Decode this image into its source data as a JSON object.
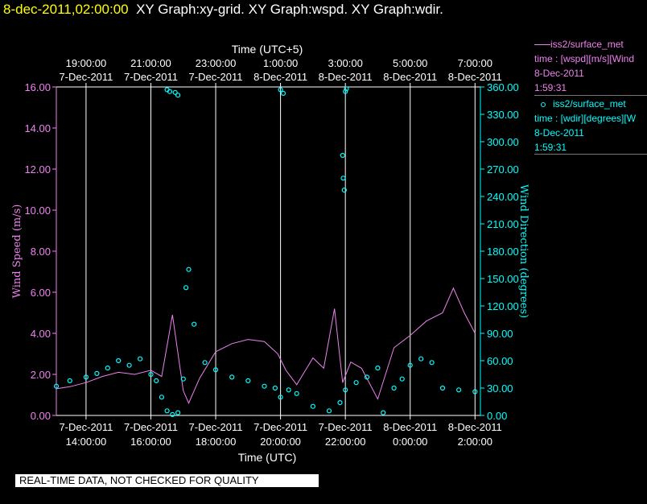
{
  "header": {
    "timestamp": "8-dec-2011,02:00:00",
    "graphs": "XY Graph:xy-grid.  XY Graph:wspd.  XY Graph:wdir."
  },
  "legend": {
    "wspd": {
      "title": "iss2/surface_met",
      "desc": "time : [wspd][m/s][Wind",
      "date": "8-Dec-2011",
      "time": "1:59:31",
      "color": "#ee82ee"
    },
    "wdir": {
      "title": "iss2/surface_met",
      "desc": "time : [wdir][degrees][W",
      "date": "8-Dec-2011",
      "time": "1:59:31",
      "color": "#00ffff"
    }
  },
  "quality_notice": "REAL-TIME DATA, NOT CHECKED FOR QUALITY",
  "chart_data": {
    "type": "scatter",
    "x_top_label": "Time (UTC+5)",
    "x_bottom_label": "Time (UTC)",
    "y_left_label": "Wind Speed (m/s)",
    "y_right_label": "Wind Direction (degrees)",
    "grid": "vertical lines at 2-hour ticks",
    "x_range_utc": [
      "7-Dec-2011 13:05",
      "8-Dec-2011 02:10"
    ],
    "y_left_range": [
      0,
      16
    ],
    "y_right_range": [
      0,
      360
    ],
    "top_ticks": [
      {
        "time": "7-Dec-2011 14:00",
        "label": "19:00:00",
        "date": "7-Dec-2011"
      },
      {
        "time": "7-Dec-2011 16:00",
        "label": "21:00:00",
        "date": "7-Dec-2011"
      },
      {
        "time": "7-Dec-2011 18:00",
        "label": "23:00:00",
        "date": "7-Dec-2011"
      },
      {
        "time": "7-Dec-2011 20:00",
        "label": "1:00:00",
        "date": "8-Dec-2011"
      },
      {
        "time": "7-Dec-2011 22:00",
        "label": "3:00:00",
        "date": "8-Dec-2011"
      },
      {
        "time": "8-Dec-2011 00:00",
        "label": "5:00:00",
        "date": "8-Dec-2011"
      },
      {
        "time": "8-Dec-2011 02:00",
        "label": "7:00:00",
        "date": "8-Dec-2011"
      }
    ],
    "bottom_ticks": [
      {
        "time": "7-Dec-2011 14:00",
        "label": "14:00:00",
        "date": "7-Dec-2011"
      },
      {
        "time": "7-Dec-2011 16:00",
        "label": "16:00:00",
        "date": "7-Dec-2011"
      },
      {
        "time": "7-Dec-2011 18:00",
        "label": "18:00:00",
        "date": "7-Dec-2011"
      },
      {
        "time": "7-Dec-2011 20:00",
        "label": "20:00:00",
        "date": "7-Dec-2011"
      },
      {
        "time": "7-Dec-2011 22:00",
        "label": "22:00:00",
        "date": "7-Dec-2011"
      },
      {
        "time": "8-Dec-2011 00:00",
        "label": "0:00:00",
        "date": "8-Dec-2011"
      },
      {
        "time": "8-Dec-2011 02:00",
        "label": "2:00:00",
        "date": "8-Dec-2011"
      }
    ],
    "y_left_ticks": [
      "0.00",
      "2.00",
      "4.00",
      "6.00",
      "8.00",
      "10.00",
      "12.00",
      "14.00",
      "16.00"
    ],
    "y_right_ticks": [
      "0.00",
      "30.00",
      "60.00",
      "90.00",
      "120.00",
      "150.00",
      "180.00",
      "210.00",
      "240.00",
      "270.00",
      "300.00",
      "330.00",
      "360.00"
    ],
    "series": [
      {
        "name": "iss2/surface_met wspd",
        "style": "line",
        "axis": "left",
        "color": "#ee82ee",
        "times": [
          "7-Dec-2011 13:05",
          "7-Dec-2011 13:30",
          "7-Dec-2011 14:00",
          "7-Dec-2011 14:30",
          "7-Dec-2011 15:00",
          "7-Dec-2011 15:30",
          "7-Dec-2011 16:00",
          "7-Dec-2011 16:20",
          "7-Dec-2011 16:40",
          "7-Dec-2011 17:00",
          "7-Dec-2011 17:10",
          "7-Dec-2011 17:30",
          "7-Dec-2011 18:00",
          "7-Dec-2011 18:30",
          "7-Dec-2011 19:00",
          "7-Dec-2011 19:30",
          "7-Dec-2011 19:55",
          "7-Dec-2011 20:10",
          "7-Dec-2011 20:30",
          "7-Dec-2011 21:00",
          "7-Dec-2011 21:20",
          "7-Dec-2011 21:40",
          "7-Dec-2011 21:55",
          "7-Dec-2011 22:10",
          "7-Dec-2011 22:30",
          "7-Dec-2011 23:00",
          "7-Dec-2011 23:30",
          "8-Dec-2011 00:00",
          "8-Dec-2011 00:30",
          "8-Dec-2011 01:00",
          "8-Dec-2011 01:20",
          "8-Dec-2011 01:40",
          "8-Dec-2011 02:00"
        ],
        "values": [
          1.3,
          1.4,
          1.6,
          1.9,
          2.1,
          2.0,
          2.2,
          1.9,
          4.9,
          1.2,
          0.6,
          1.8,
          3.1,
          3.5,
          3.7,
          3.6,
          3.0,
          2.2,
          1.5,
          2.8,
          2.3,
          5.2,
          1.6,
          2.6,
          2.3,
          0.8,
          3.3,
          3.9,
          4.6,
          5.0,
          6.2,
          5.0,
          4.0
        ]
      },
      {
        "name": "iss2/surface_met wdir",
        "style": "points",
        "axis": "right",
        "color": "#00ffff",
        "times": [
          "7-Dec-2011 13:05",
          "7-Dec-2011 13:30",
          "7-Dec-2011 14:00",
          "7-Dec-2011 14:20",
          "7-Dec-2011 14:40",
          "7-Dec-2011 15:00",
          "7-Dec-2011 15:20",
          "7-Dec-2011 15:40",
          "7-Dec-2011 16:00",
          "7-Dec-2011 16:10",
          "7-Dec-2011 16:20",
          "7-Dec-2011 16:30",
          "7-Dec-2011 16:40",
          "7-Dec-2011 16:50",
          "7-Dec-2011 17:00",
          "7-Dec-2011 17:05",
          "7-Dec-2011 17:10",
          "7-Dec-2011 17:20",
          "7-Dec-2011 17:40",
          "7-Dec-2011 18:00",
          "7-Dec-2011 18:30",
          "7-Dec-2011 19:00",
          "7-Dec-2011 19:30",
          "7-Dec-2011 19:50",
          "7-Dec-2011 20:00",
          "7-Dec-2011 20:15",
          "7-Dec-2011 20:30",
          "7-Dec-2011 21:00",
          "7-Dec-2011 21:30",
          "7-Dec-2011 21:50",
          "7-Dec-2011 22:00",
          "7-Dec-2011 22:20",
          "7-Dec-2011 22:40",
          "7-Dec-2011 23:00",
          "7-Dec-2011 23:10",
          "7-Dec-2011 23:30",
          "7-Dec-2011 23:45",
          "8-Dec-2011 00:00",
          "8-Dec-2011 00:20",
          "8-Dec-2011 00:40",
          "8-Dec-2011 01:00",
          "8-Dec-2011 01:30",
          "8-Dec-2011 02:00"
        ],
        "values": [
          32,
          38,
          42,
          46,
          52,
          60,
          55,
          62,
          45,
          38,
          20,
          5,
          1,
          3,
          40,
          140,
          160,
          100,
          58,
          50,
          42,
          38,
          32,
          30,
          20,
          28,
          24,
          10,
          5,
          14,
          28,
          36,
          42,
          52,
          3,
          30,
          40,
          55,
          62,
          58,
          30,
          28,
          26
        ]
      },
      {
        "name": "iss2/surface_met wdir high",
        "style": "points",
        "axis": "right",
        "color": "#00ffff",
        "times": [
          "7-Dec-2011 16:30",
          "7-Dec-2011 16:35",
          "7-Dec-2011 16:45",
          "7-Dec-2011 16:50",
          "7-Dec-2011 20:00",
          "7-Dec-2011 20:05",
          "7-Dec-2011 21:55",
          "7-Dec-2011 21:56",
          "7-Dec-2011 21:58",
          "7-Dec-2011 22:00",
          "7-Dec-2011 22:02"
        ],
        "values": [
          357,
          355,
          354,
          351,
          357,
          353,
          285,
          260,
          247,
          355,
          358
        ]
      }
    ]
  }
}
